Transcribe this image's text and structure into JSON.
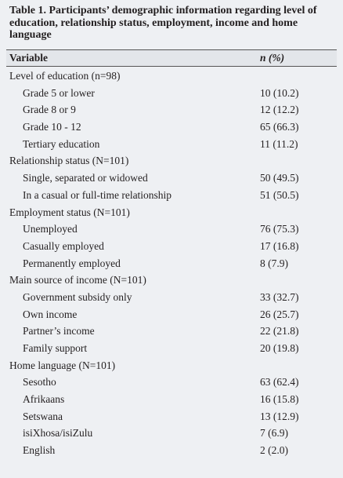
{
  "title": "Table 1. Participants’ demographic information regarding level of education, relationship status, employment, income and home language",
  "header": {
    "variable": "Variable",
    "n": "n (%)"
  },
  "sections": [
    {
      "label": "Level of education (n=98)",
      "rows": [
        {
          "label": "Grade 5 or lower",
          "value": "10 (10.2)"
        },
        {
          "label": "Grade 8 or 9",
          "value": "12 (12.2)"
        },
        {
          "label": "Grade 10 - 12",
          "value": "65 (66.3)"
        },
        {
          "label": "Tertiary education",
          "value": "11 (11.2)"
        }
      ]
    },
    {
      "label": "Relationship status (N=101)",
      "rows": [
        {
          "label": "Single, separated or widowed",
          "value": "50 (49.5)"
        },
        {
          "label": "In a casual or full-time relationship",
          "value": "51 (50.5)"
        }
      ]
    },
    {
      "label": "Employment status (N=101)",
      "rows": [
        {
          "label": "Unemployed",
          "value": "76 (75.3)"
        },
        {
          "label": "Casually employed",
          "value": "17 (16.8)"
        },
        {
          "label": "Permanently employed",
          "value": "8 (7.9)"
        }
      ]
    },
    {
      "label": "Main source of income (N=101)",
      "rows": [
        {
          "label": "Government subsidy only",
          "value": "33 (32.7)"
        },
        {
          "label": "Own income",
          "value": "26 (25.7)"
        },
        {
          "label": "Partner’s income",
          "value": "22 (21.8)"
        },
        {
          "label": "Family support",
          "value": "20 (19.8)"
        }
      ]
    },
    {
      "label": "Home language (N=101)",
      "rows": [
        {
          "label": "Sesotho",
          "value": "63 (62.4)"
        },
        {
          "label": "Afrikaans",
          "value": "16 (15.8)"
        },
        {
          "label": "Setswana",
          "value": "13 (12.9)"
        },
        {
          "label": "isiXhosa/isiZulu",
          "value": "7 (6.9)"
        },
        {
          "label": "English",
          "value": "2 (2.0)"
        }
      ]
    }
  ]
}
